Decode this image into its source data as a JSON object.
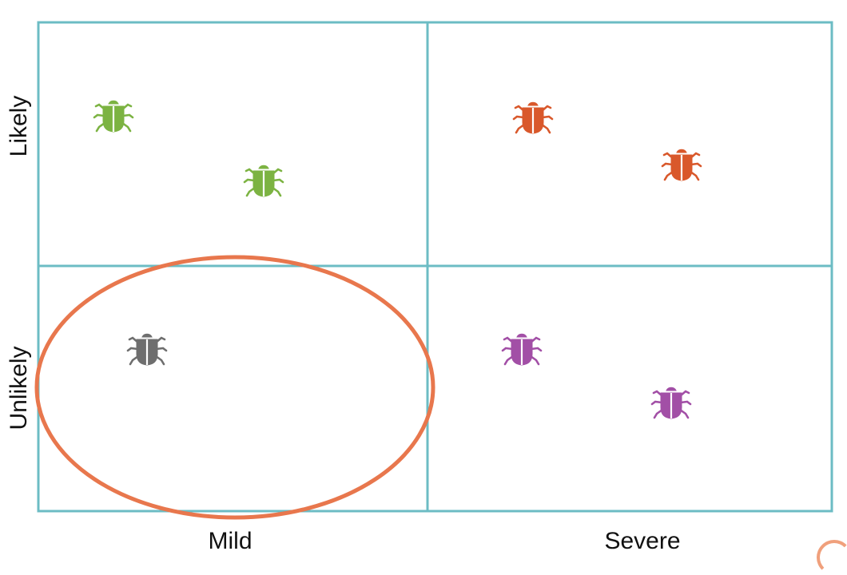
{
  "axes": {
    "y_top": "Likely",
    "y_bottom": "Unlikely",
    "x_left": "Mild",
    "x_right": "Severe"
  },
  "colors": {
    "grid": "#6cbcc4",
    "highlight": "#e8774d",
    "green": "#7cb342",
    "orange": "#d9582b",
    "gray": "#6e6e6e",
    "purple": "#a24fa6"
  },
  "bugs": [
    {
      "quadrant": "likely-mild",
      "color": "green",
      "icon": "bug-icon"
    },
    {
      "quadrant": "likely-mild",
      "color": "green",
      "icon": "bug-icon"
    },
    {
      "quadrant": "likely-severe",
      "color": "orange",
      "icon": "bug-icon"
    },
    {
      "quadrant": "likely-severe",
      "color": "orange",
      "icon": "bug-icon"
    },
    {
      "quadrant": "unlikely-mild",
      "color": "gray",
      "icon": "bug-icon"
    },
    {
      "quadrant": "unlikely-severe",
      "color": "purple",
      "icon": "bug-icon"
    },
    {
      "quadrant": "unlikely-severe",
      "color": "purple",
      "icon": "bug-icon"
    }
  ],
  "highlight": {
    "quadrant": "unlikely-mild",
    "shape": "ellipse"
  }
}
